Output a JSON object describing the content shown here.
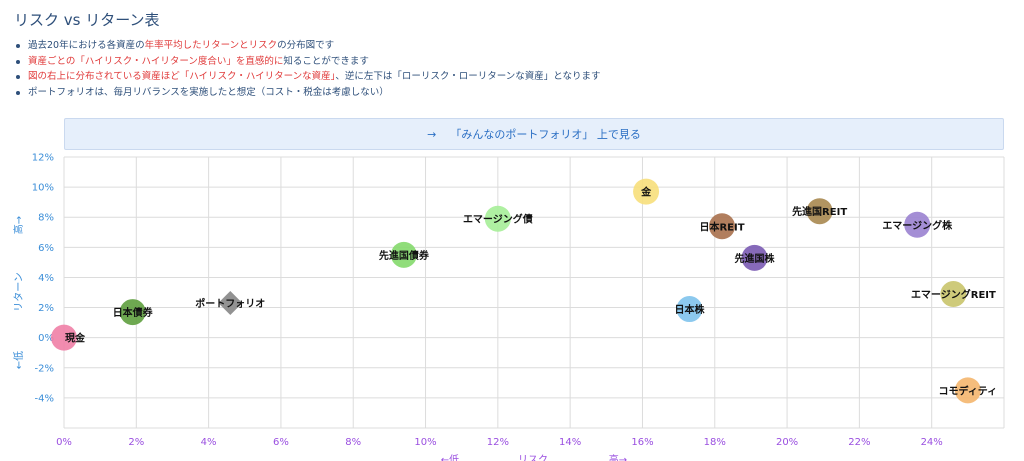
{
  "page": {
    "title": "リスク vs リターン表",
    "notes": [
      {
        "parts": [
          {
            "text": "過去20年における各資産の",
            "hl": false
          },
          {
            "text": "年率平均したリターンとリスク",
            "hl": true
          },
          {
            "text": "の分布図です",
            "hl": false
          }
        ]
      },
      {
        "parts": [
          {
            "text": "資産ごとの「ハイリスク・ハイリターン度合い」を直感的に",
            "hl": true
          },
          {
            "text": "知ることができます",
            "hl": false
          }
        ]
      },
      {
        "parts": [
          {
            "text": "図の右上に分布されている資産ほど「ハイリスク・ハイリターンな資産」",
            "hl": true
          },
          {
            "text": "、逆に左下は「ローリスク・ローリターンな資産」となります",
            "hl": false
          }
        ]
      },
      {
        "parts": [
          {
            "text": "ポートフォリオは、毎月リバランスを実施したと想定（コスト・税金は考慮しない）",
            "hl": false
          }
        ]
      }
    ],
    "banner": {
      "arrow": "→",
      "text": "「みんなのポートフォリオ」 上で見る"
    }
  },
  "colors": {
    "grid": "#dcdcdc",
    "y_tick": "#3b8ed8",
    "x_tick": "#9a4fe0",
    "banner_bg": "#e6effb",
    "banner_text": "#2b6fc4"
  },
  "chart_data": {
    "type": "scatter",
    "xlim": [
      0,
      26
    ],
    "ylim": [
      -6,
      12
    ],
    "x_ticks": [
      0,
      2,
      4,
      6,
      8,
      10,
      12,
      14,
      16,
      18,
      20,
      22,
      24
    ],
    "y_ticks": [
      -4,
      -2,
      0,
      2,
      4,
      6,
      8,
      10,
      12
    ],
    "x_tick_labels": [
      "0%",
      "2%",
      "4%",
      "6%",
      "8%",
      "10%",
      "12%",
      "14%",
      "16%",
      "18%",
      "20%",
      "22%",
      "24%"
    ],
    "y_tick_labels": [
      "-4%",
      "-2%",
      "0%",
      "2%",
      "4%",
      "6%",
      "8%",
      "10%",
      "12%"
    ],
    "xlabel": {
      "low": "←低",
      "name": "リスク",
      "high": "高→"
    },
    "ylabel": {
      "low": "←低",
      "name": "リターン",
      "high": "高→"
    },
    "grid": true,
    "points": [
      {
        "name": "現金",
        "x": 0.0,
        "y": 0.0,
        "color": "#f07fa6",
        "shape": "circle"
      },
      {
        "name": "日本債券",
        "x": 1.9,
        "y": 1.7,
        "color": "#5e9e3e",
        "shape": "circle"
      },
      {
        "name": "ポートフォリオ",
        "x": 4.6,
        "y": 2.3,
        "color": "#8c8c8c",
        "shape": "diamond"
      },
      {
        "name": "先進国債券",
        "x": 9.4,
        "y": 5.5,
        "color": "#84d96b",
        "shape": "circle"
      },
      {
        "name": "エマージング債",
        "x": 12.0,
        "y": 7.9,
        "color": "#a6ee98",
        "shape": "circle"
      },
      {
        "name": "金",
        "x": 16.1,
        "y": 9.7,
        "color": "#f7df7b",
        "shape": "circle"
      },
      {
        "name": "日本株",
        "x": 17.3,
        "y": 1.9,
        "color": "#7fc3ec",
        "shape": "circle"
      },
      {
        "name": "日本REIT",
        "x": 18.2,
        "y": 7.4,
        "color": "#a9704c",
        "shape": "circle"
      },
      {
        "name": "先進国株",
        "x": 19.1,
        "y": 5.3,
        "color": "#7a5ab3",
        "shape": "circle"
      },
      {
        "name": "先進国REIT",
        "x": 20.9,
        "y": 8.4,
        "color": "#a88850",
        "shape": "circle"
      },
      {
        "name": "エマージング株",
        "x": 23.6,
        "y": 7.5,
        "color": "#9a82d0",
        "shape": "circle"
      },
      {
        "name": "エマージングREIT",
        "x": 24.6,
        "y": 2.9,
        "color": "#c9c46c",
        "shape": "circle"
      },
      {
        "name": "コモディティ",
        "x": 25.0,
        "y": -3.5,
        "color": "#f4b66e",
        "shape": "circle"
      }
    ]
  }
}
